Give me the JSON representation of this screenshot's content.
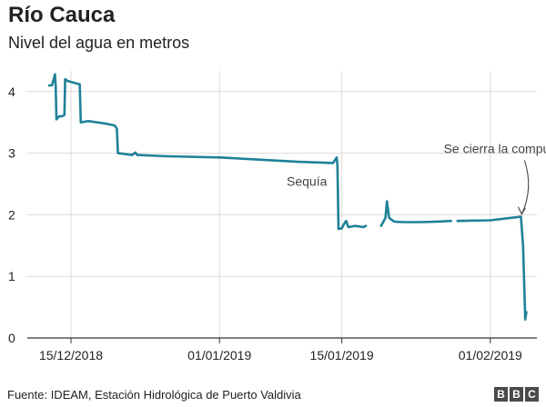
{
  "title": "Río Cauca",
  "subtitle": "Nivel del agua en metros",
  "source": "Fuente: IDEAM, Estación Hidrológica de Puerto Valdivia",
  "logo": "BBC",
  "colors": {
    "line": "#1f8198",
    "grid": "#dcdcdc",
    "axis": "#333333",
    "text": "#222222"
  },
  "chart_data": {
    "type": "line",
    "title": "Río Cauca",
    "subtitle": "Nivel del agua en metros",
    "xlabel": "",
    "ylabel": "",
    "ylim": [
      0,
      4.3
    ],
    "xlim": [
      "2018-12-10",
      "2019-02-10"
    ],
    "yticks": [
      0,
      1,
      2,
      3,
      4
    ],
    "xticks": [
      {
        "date": "2018-12-15",
        "label": "15/12/2018"
      },
      {
        "date": "2019-01-01",
        "label": "01/01/2019"
      },
      {
        "date": "2019-01-15",
        "label": "15/01/2019"
      },
      {
        "date": "2019-02-01",
        "label": "01/02/2019"
      }
    ],
    "grid": true,
    "series": [
      {
        "segments": [
          [
            [
              "2018-12-12 12:00",
              4.1
            ],
            [
              "2018-12-12 20:00",
              4.1
            ],
            [
              "2018-12-13 04:00",
              4.28
            ],
            [
              "2018-12-13 06:00",
              4.1
            ],
            [
              "2018-12-13 08:00",
              3.55
            ],
            [
              "2018-12-13 16:00",
              3.6
            ],
            [
              "2018-12-14 00:00",
              3.6
            ],
            [
              "2018-12-14 06:00",
              3.62
            ],
            [
              "2018-12-14 08:00",
              4.2
            ],
            [
              "2018-12-14 16:00",
              4.17
            ],
            [
              "2018-12-15 16:00",
              4.13
            ],
            [
              "2018-12-16 00:00",
              4.12
            ],
            [
              "2018-12-16 03:00",
              3.5
            ],
            [
              "2018-12-17 00:00",
              3.52
            ],
            [
              "2018-12-18 00:00",
              3.5
            ],
            [
              "2018-12-19 00:00",
              3.48
            ],
            [
              "2018-12-20 00:00",
              3.45
            ],
            [
              "2018-12-20 06:00",
              3.4
            ],
            [
              "2018-12-20 09:00",
              3.0
            ],
            [
              "2018-12-21 00:00",
              2.99
            ],
            [
              "2018-12-22 00:00",
              2.97
            ],
            [
              "2018-12-22 09:00",
              3.01
            ],
            [
              "2018-12-22 14:00",
              2.97
            ],
            [
              "2018-12-26 00:00",
              2.95
            ],
            [
              "2019-01-01 00:00",
              2.93
            ],
            [
              "2019-01-05 00:00",
              2.9
            ],
            [
              "2019-01-10 00:00",
              2.86
            ],
            [
              "2019-01-14 00:00",
              2.84
            ],
            [
              "2019-01-14 10:00",
              2.93
            ],
            [
              "2019-01-14 12:00",
              2.8
            ],
            [
              "2019-01-14 15:00",
              1.77
            ],
            [
              "2019-01-15 00:00",
              1.78
            ],
            [
              "2019-01-15 06:00",
              1.85
            ],
            [
              "2019-01-15 12:00",
              1.9
            ],
            [
              "2019-01-15 18:00",
              1.8
            ],
            [
              "2019-01-16 12:00",
              1.82
            ],
            [
              "2019-01-17 12:00",
              1.8
            ],
            [
              "2019-01-17 18:00",
              1.82
            ]
          ],
          [
            [
              "2019-01-19 12:00",
              1.82
            ],
            [
              "2019-01-20 00:00",
              1.95
            ],
            [
              "2019-01-20 04:00",
              2.22
            ],
            [
              "2019-01-20 10:00",
              1.95
            ],
            [
              "2019-01-21 00:00",
              1.89
            ],
            [
              "2019-01-22 00:00",
              1.88
            ],
            [
              "2019-01-24 00:00",
              1.88
            ],
            [
              "2019-01-26 00:00",
              1.89
            ],
            [
              "2019-01-27 12:00",
              1.9
            ]
          ],
          [
            [
              "2019-01-28 06:00",
              1.9
            ],
            [
              "2019-02-01 00:00",
              1.91
            ],
            [
              "2019-02-04 00:00",
              1.96
            ],
            [
              "2019-02-04 12:00",
              1.97
            ],
            [
              "2019-02-04 18:00",
              1.5
            ],
            [
              "2019-02-05 00:00",
              0.3
            ],
            [
              "2019-02-05 03:00",
              0.42
            ]
          ]
        ]
      }
    ],
    "annotations": [
      {
        "text": "Sequía",
        "date": "2019-01-11",
        "y": 2.47
      },
      {
        "text": "Se cierra la compuerta",
        "date": "2019-02-03",
        "y": 3.0,
        "arrow_to": [
          "2019-02-04 12:00",
          1.98
        ]
      }
    ]
  }
}
